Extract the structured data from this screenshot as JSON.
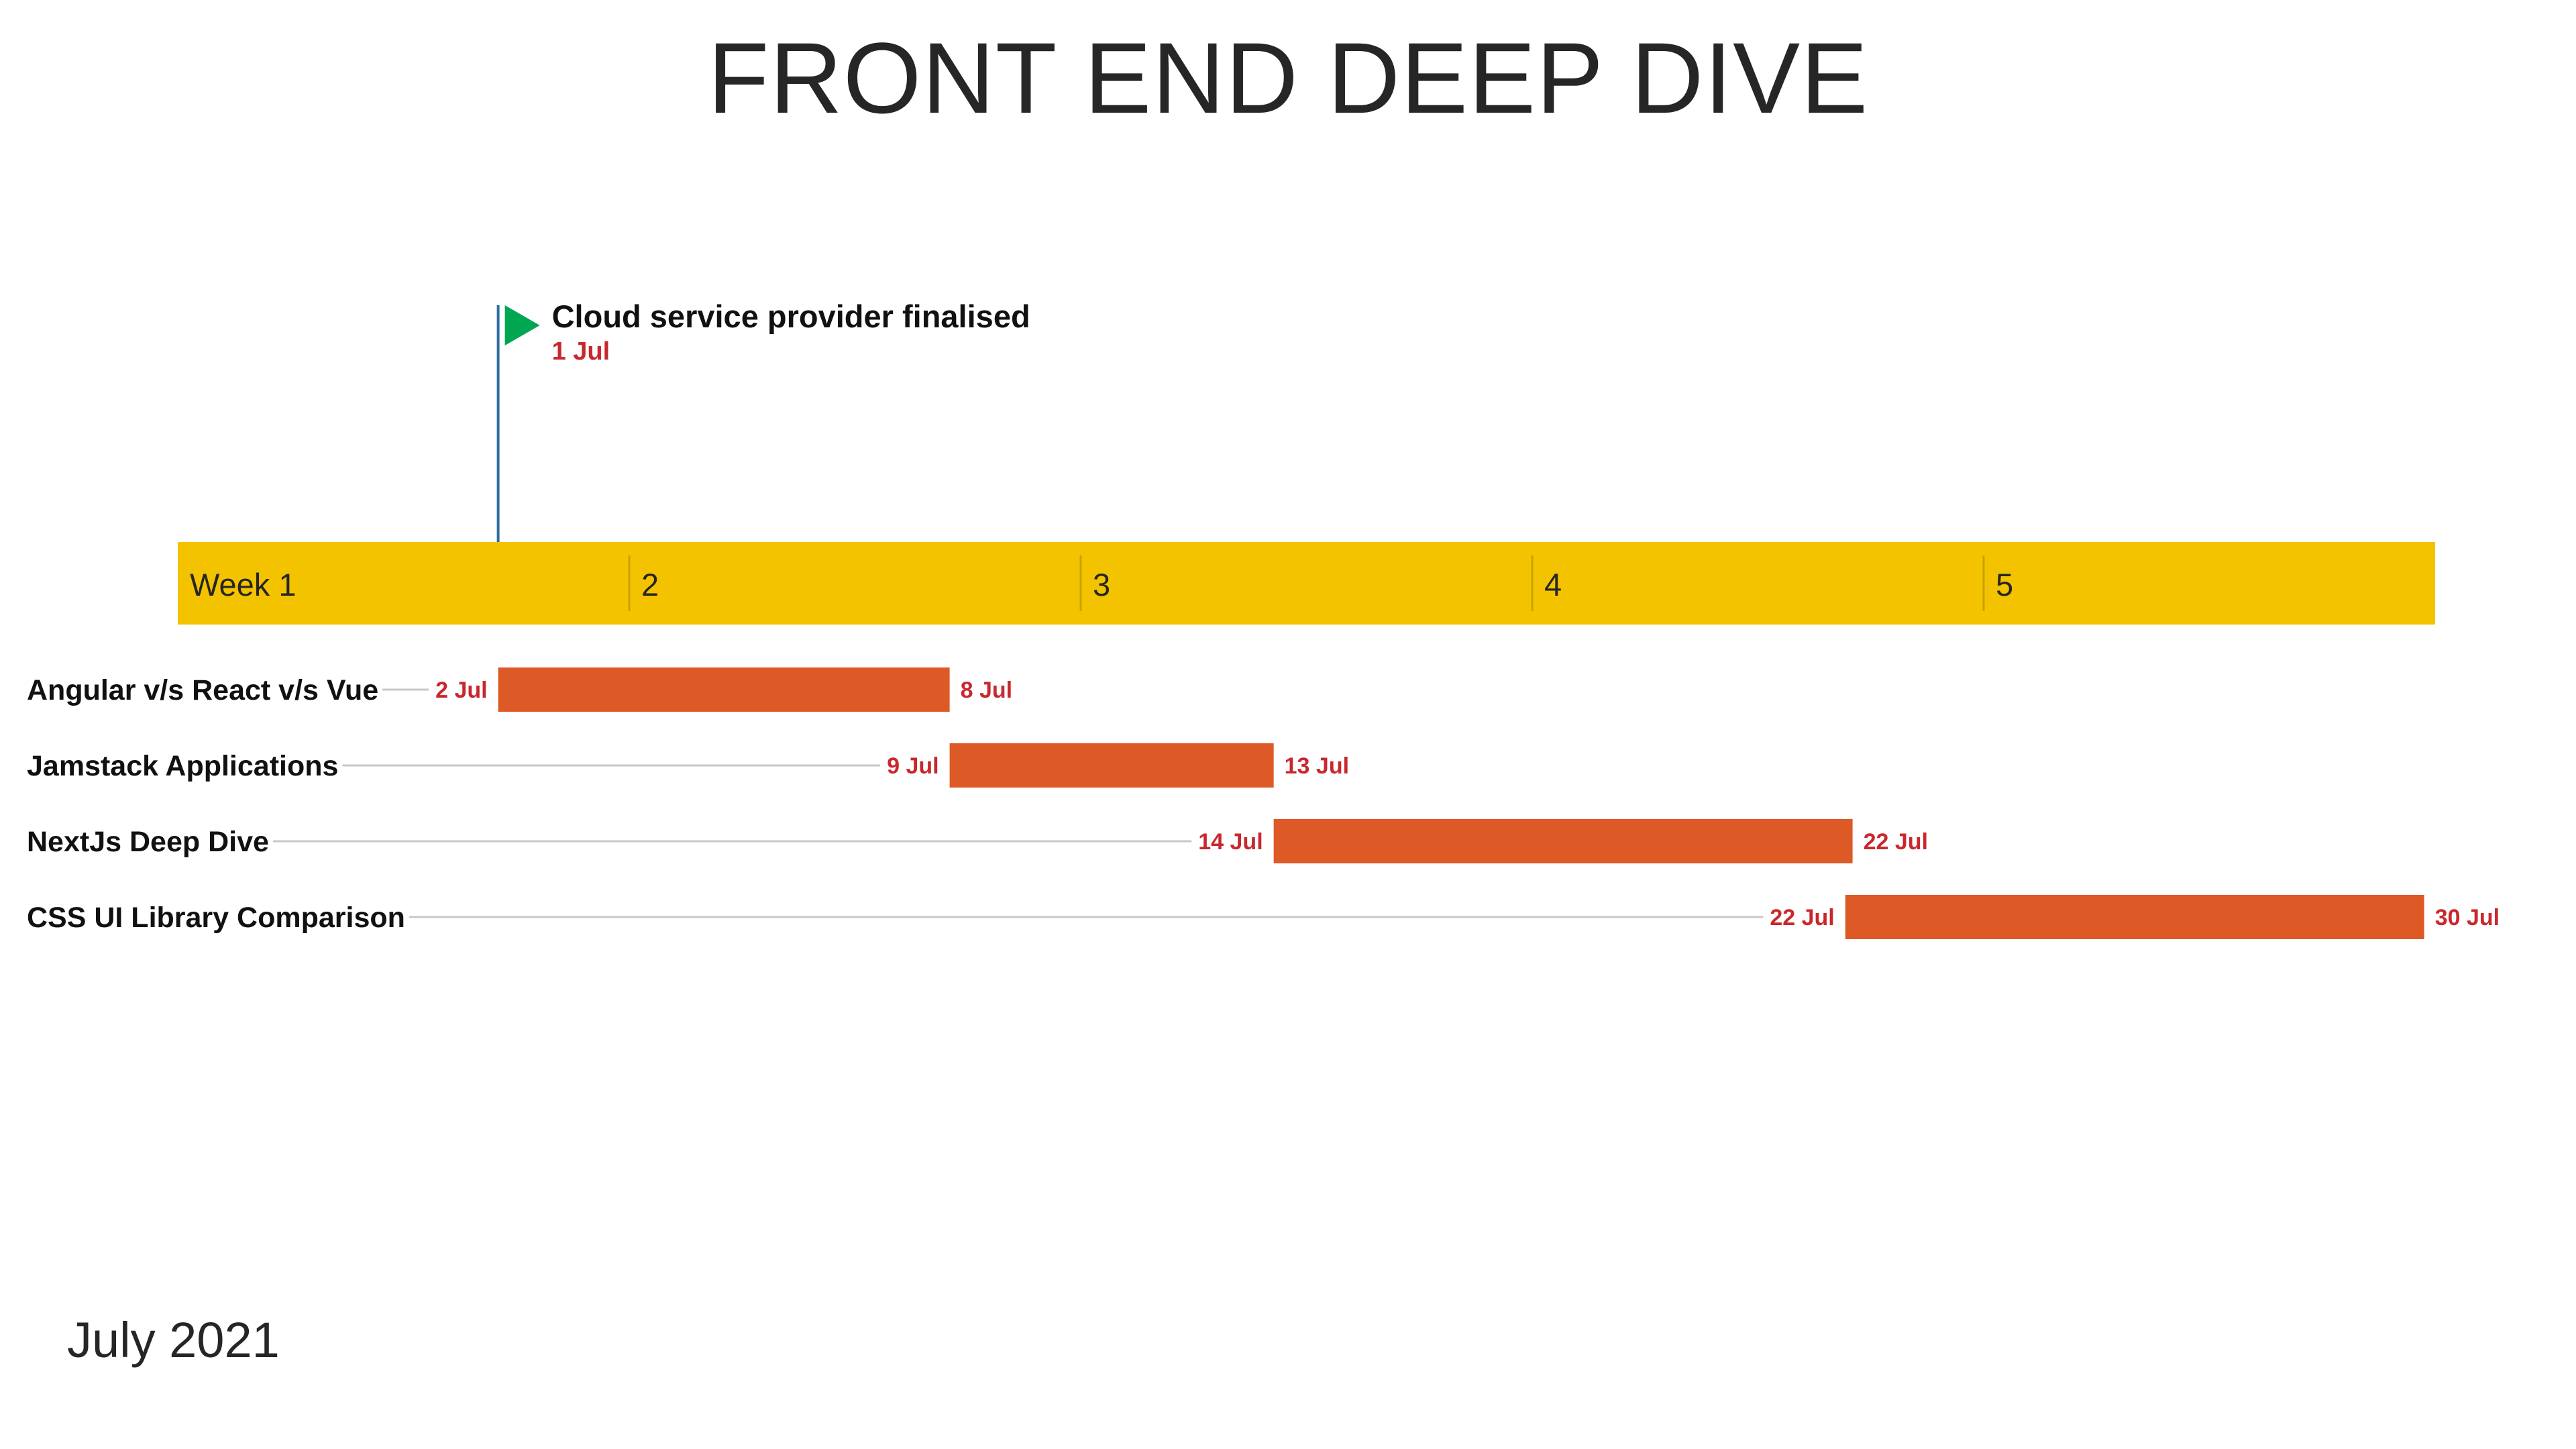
{
  "title": "FRONT END DEEP DIVE",
  "month_label": "July 2021",
  "colors": {
    "week_band": "#F4C300",
    "week_divider": "#C9A200",
    "task_bar": "#DD5A26",
    "date_text": "#C8282D",
    "connector": "#C8C8C8",
    "milestone_flag": "#00A651",
    "milestone_pole": "#2E6DA4"
  },
  "chart_data": {
    "type": "gantt",
    "title": "FRONT END DEEP DIVE",
    "x_unit": "day of July 2021",
    "x_range": [
      0.5,
      31.5
    ],
    "weeks": [
      {
        "label": "Week 1",
        "start_day": 0.5
      },
      {
        "label": "2",
        "start_day": 6.7
      },
      {
        "label": "3",
        "start_day": 12.9
      },
      {
        "label": "4",
        "start_day": 19.1
      },
      {
        "label": "5",
        "start_day": 25.3
      }
    ],
    "milestones": [
      {
        "name": "Cloud service provider finalised",
        "date": "1 Jul",
        "day": 4.9,
        "icon": "flag-icon"
      }
    ],
    "tasks": [
      {
        "name": "Angular v/s React v/s Vue",
        "start": "2 Jul",
        "end": "8 Jul",
        "start_day": 4.9,
        "end_day": 11.1
      },
      {
        "name": "Jamstack Applications",
        "start": "9 Jul",
        "end": "13 Jul",
        "start_day": 11.1,
        "end_day": 15.55
      },
      {
        "name": "NextJs Deep Dive",
        "start": "14 Jul",
        "end": "22 Jul",
        "start_day": 15.55,
        "end_day": 23.5
      },
      {
        "name": "CSS UI Library Comparison",
        "start": "22 Jul",
        "end": "30 Jul",
        "start_day": 23.4,
        "end_day": 31.35
      }
    ]
  }
}
